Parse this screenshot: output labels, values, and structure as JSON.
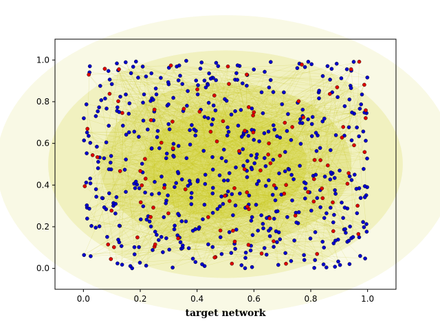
{
  "chart_data": {
    "type": "scatter",
    "title": "",
    "xlabel": "target network",
    "ylabel": "",
    "xlim": [
      -0.1,
      1.1
    ],
    "ylim": [
      -0.1,
      1.1
    ],
    "x_ticks": [
      0.0,
      0.2,
      0.4,
      0.6,
      0.8,
      1.0
    ],
    "y_ticks": [
      0.0,
      0.2,
      0.4,
      0.6,
      0.8,
      1.0
    ],
    "x_tick_labels": [
      "0.0",
      "0.2",
      "0.4",
      "0.6",
      "0.8",
      "1.0"
    ],
    "y_tick_labels": [
      "0.0",
      "0.2",
      "0.4",
      "0.6",
      "0.8",
      "1.0"
    ],
    "grid": false,
    "legend": "none",
    "colors": {
      "regular_node": "#0000cc",
      "highlighted_node": "#dd0000",
      "node_edge": "#000000",
      "edges": "#b8b800",
      "dense_core": "#c4c400"
    },
    "series": [
      {
        "name": "",
        "color": "#0000cc",
        "count": 520,
        "x_range": [
          0.0,
          1.0
        ],
        "y_range": [
          0.0,
          1.0
        ]
      },
      {
        "name": "",
        "color": "#dd0000",
        "count": 110,
        "x_range": [
          0.0,
          1.0
        ],
        "y_range": [
          0.0,
          1.0
        ]
      }
    ],
    "edges": {
      "count": 900,
      "note_values": []
    }
  }
}
